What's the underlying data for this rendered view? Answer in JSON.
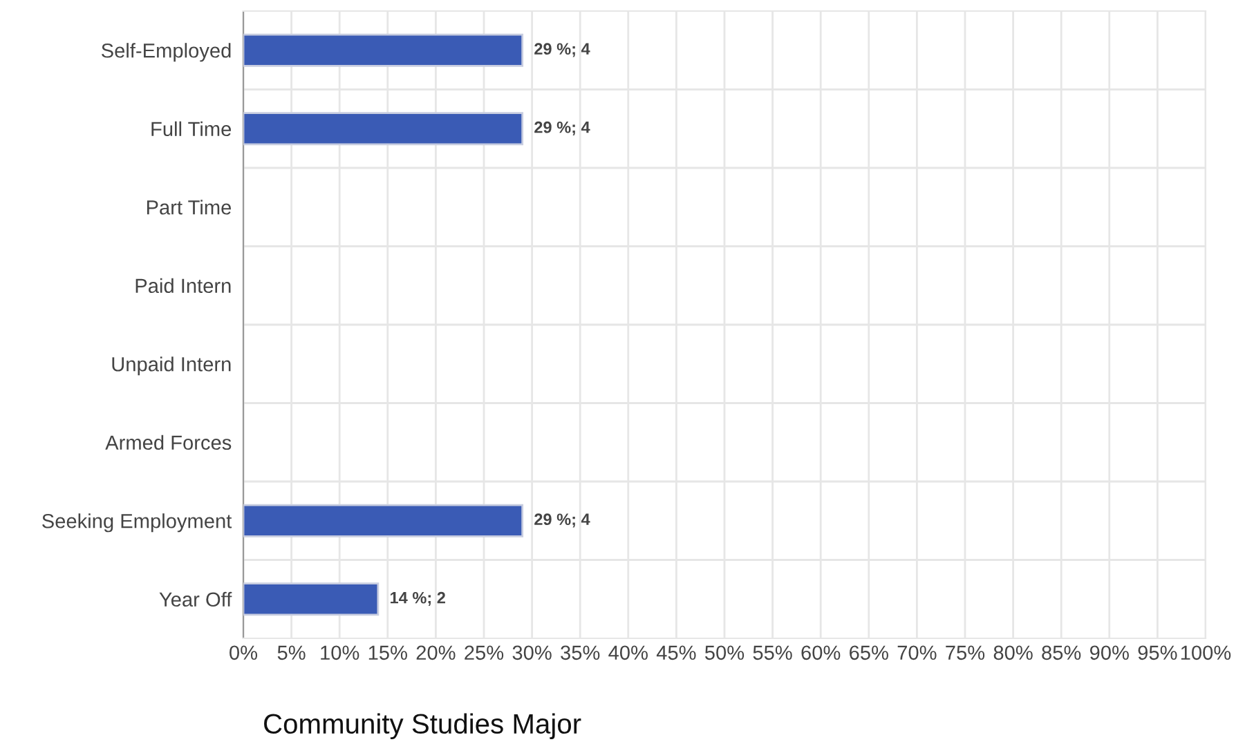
{
  "chart_data": {
    "type": "bar",
    "orientation": "horizontal",
    "title": "Community Studies Major",
    "categories": [
      "Self-Employed",
      "Full Time",
      "Part Time",
      "Paid Intern",
      "Unpaid Intern",
      "Armed Forces",
      "Seeking Employment",
      "Year Off"
    ],
    "values": [
      29,
      29,
      0,
      0,
      0,
      0,
      29,
      14
    ],
    "value_labels": [
      "29 %; 4",
      "29 %; 4",
      null,
      null,
      null,
      null,
      "29 %; 4",
      "14 %; 2"
    ],
    "color": "#3a5bb5",
    "xlim": [
      0,
      100
    ],
    "xticks": [
      {
        "value": 0,
        "label": "0%"
      },
      {
        "value": 5,
        "label": "5%"
      },
      {
        "value": 10,
        "label": "10%"
      },
      {
        "value": 15,
        "label": "15%"
      },
      {
        "value": 20,
        "label": "20%"
      },
      {
        "value": 25,
        "label": "25%"
      },
      {
        "value": 30,
        "label": "30%"
      },
      {
        "value": 35,
        "label": "35%"
      },
      {
        "value": 40,
        "label": "40%"
      },
      {
        "value": 45,
        "label": "45%"
      },
      {
        "value": 50,
        "label": "50%"
      },
      {
        "value": 55,
        "label": "55%"
      },
      {
        "value": 60,
        "label": "60%"
      },
      {
        "value": 65,
        "label": "65%"
      },
      {
        "value": 70,
        "label": "70%"
      },
      {
        "value": 75,
        "label": "75%"
      },
      {
        "value": 80,
        "label": "80%"
      },
      {
        "value": 85,
        "label": "85%"
      },
      {
        "value": 90,
        "label": "90%"
      },
      {
        "value": 95,
        "label": "95%"
      },
      {
        "value": 100,
        "label": "100%"
      }
    ],
    "grid": true
  }
}
